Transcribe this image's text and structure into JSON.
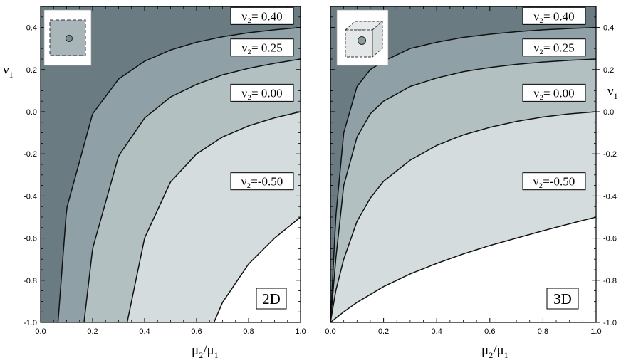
{
  "chart_data": [
    {
      "type": "area",
      "panel_tag": "2D",
      "xlabel": {
        "main": "μ",
        "sub": "2",
        "slash": "/",
        "main2": "μ",
        "sub2": "1"
      },
      "ylabel": {
        "main": "ν",
        "sub": "1"
      },
      "xlim": [
        0,
        1
      ],
      "ylim": [
        -1,
        0.5
      ],
      "xticks": [
        "0.0",
        "0.2",
        "0.4",
        "0.6",
        "0.8",
        "1.0"
      ],
      "yticks": [
        "-1.0",
        "-0.8",
        "-0.6",
        "-0.4",
        "-0.2",
        "0.0",
        "0.2",
        "0.4"
      ],
      "grid": false,
      "inset": "square-with-inclusion",
      "curves": [
        {
          "label": "ν₂= 0.40",
          "x": [
            0.067,
            0.1,
            0.2,
            0.3,
            0.4,
            0.5,
            0.6,
            0.7,
            0.8,
            0.9,
            1.0
          ],
          "y": [
            -1.0,
            -0.46,
            -0.01,
            0.155,
            0.24,
            0.293,
            0.33,
            0.356,
            0.375,
            0.389,
            0.4
          ]
        },
        {
          "label": "ν₂= 0.25",
          "x": [
            0.167,
            0.2,
            0.3,
            0.4,
            0.5,
            0.6,
            0.7,
            0.8,
            0.9,
            1.0
          ],
          "y": [
            -1.0,
            -0.65,
            -0.21,
            -0.03,
            0.07,
            0.13,
            0.175,
            0.206,
            0.23,
            0.25
          ]
        },
        {
          "label": "ν₂= 0.00",
          "x": [
            0.333,
            0.4,
            0.5,
            0.6,
            0.7,
            0.8,
            0.9,
            1.0
          ],
          "y": [
            -1.0,
            -0.6,
            -0.333,
            -0.2,
            -0.12,
            -0.067,
            -0.029,
            0.0
          ]
        },
        {
          "label": "ν₂=-0.50",
          "x": [
            0.667,
            0.7,
            0.8,
            0.9,
            1.0
          ],
          "y": [
            -1.0,
            -0.905,
            -0.723,
            -0.6,
            -0.5
          ]
        }
      ]
    },
    {
      "type": "area",
      "panel_tag": "3D",
      "xlabel": {
        "main": "μ",
        "sub": "2",
        "slash": "/",
        "main2": "μ",
        "sub2": "1"
      },
      "ylabel": {
        "main": "ν",
        "sub": "1"
      },
      "xlim": [
        0,
        1
      ],
      "ylim": [
        -1,
        0.5
      ],
      "xticks": [
        "0.0",
        "0.2",
        "0.4",
        "0.6",
        "0.8",
        "1.0"
      ],
      "yticks": [
        "-1.0",
        "-0.8",
        "-0.6",
        "-0.4",
        "-0.2",
        "0.0",
        "0.2",
        "0.4"
      ],
      "grid": false,
      "inset": "cube-with-inclusion",
      "curves": [
        {
          "label": "ν₂= 0.40",
          "x": [
            0.0,
            0.02,
            0.05,
            0.1,
            0.15,
            0.2,
            0.3,
            0.4,
            0.5,
            0.6,
            0.7,
            0.8,
            0.9,
            1.0
          ],
          "y": [
            -1.0,
            -0.5,
            -0.1,
            0.12,
            0.2,
            0.24,
            0.3,
            0.33,
            0.353,
            0.368,
            0.38,
            0.389,
            0.395,
            0.4
          ]
        },
        {
          "label": "ν₂= 0.25",
          "x": [
            0.0,
            0.02,
            0.05,
            0.1,
            0.15,
            0.2,
            0.3,
            0.4,
            0.5,
            0.6,
            0.7,
            0.8,
            0.9,
            1.0
          ],
          "y": [
            -1.0,
            -0.7,
            -0.35,
            -0.12,
            -0.01,
            0.05,
            0.12,
            0.16,
            0.19,
            0.21,
            0.225,
            0.236,
            0.244,
            0.25
          ]
        },
        {
          "label": "ν₂= 0.00",
          "x": [
            0.0,
            0.02,
            0.05,
            0.1,
            0.15,
            0.2,
            0.3,
            0.4,
            0.5,
            0.6,
            0.7,
            0.8,
            0.9,
            1.0
          ],
          "y": [
            -1.0,
            -0.85,
            -0.7,
            -0.52,
            -0.41,
            -0.33,
            -0.23,
            -0.16,
            -0.11,
            -0.074,
            -0.046,
            -0.025,
            -0.01,
            0.0
          ]
        },
        {
          "label": "ν₂=-0.50",
          "x": [
            0.0,
            0.05,
            0.1,
            0.2,
            0.3,
            0.4,
            0.5,
            0.6,
            0.7,
            0.8,
            0.9,
            1.0
          ],
          "y": [
            -1.0,
            -0.95,
            -0.905,
            -0.83,
            -0.77,
            -0.72,
            -0.675,
            -0.635,
            -0.6,
            -0.565,
            -0.532,
            -0.5
          ]
        }
      ]
    }
  ],
  "colors": {
    "region_darkest": "#6b7b82",
    "region_dark": "#8fa1a6",
    "region_mid": "#b3c0c2",
    "region_light": "#d4dcde",
    "region_white": "#ffffff",
    "curve": "#111111"
  }
}
